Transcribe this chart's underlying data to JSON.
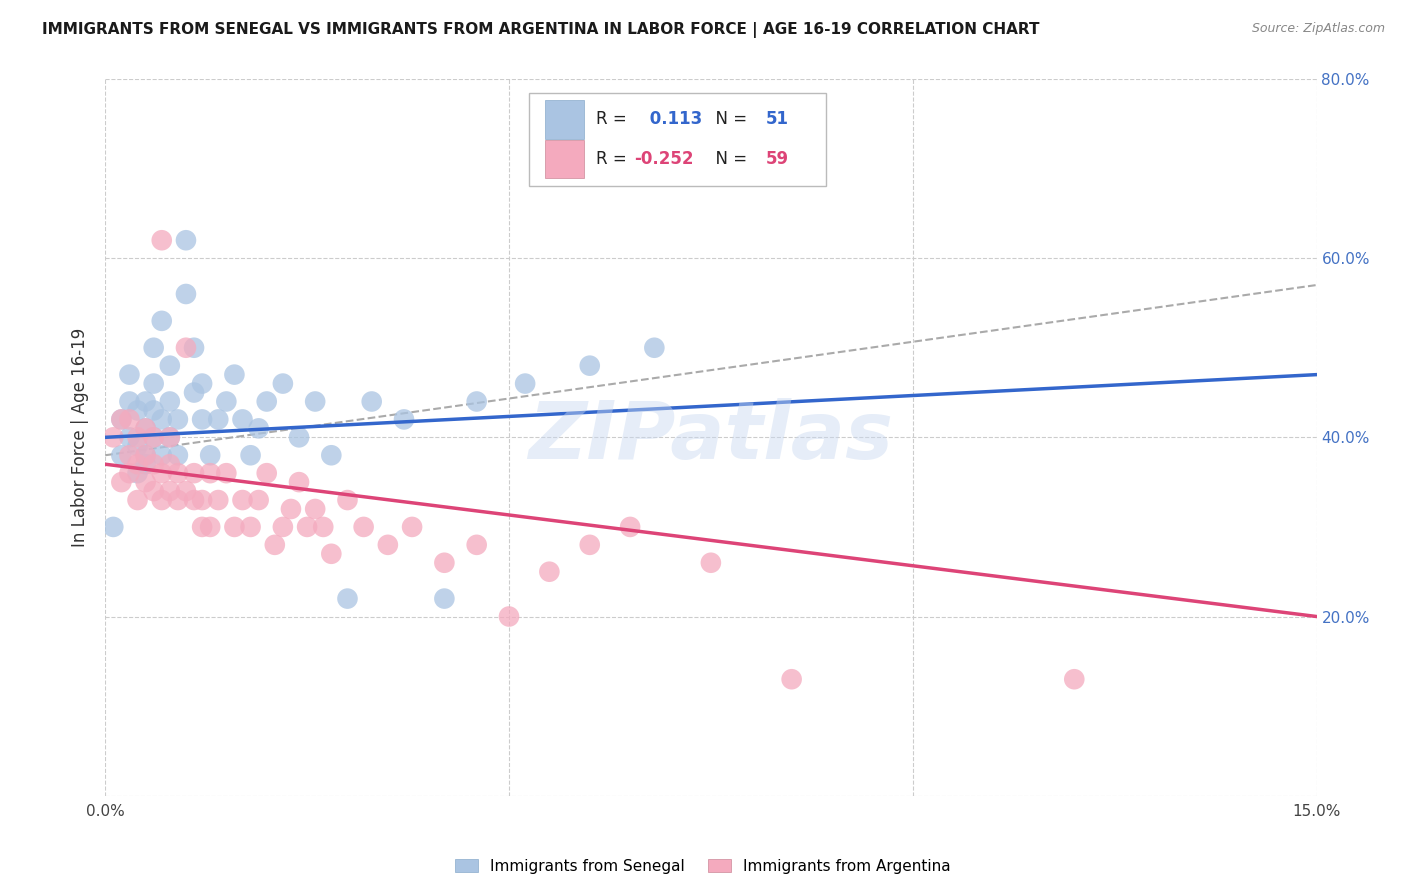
{
  "title": "IMMIGRANTS FROM SENEGAL VS IMMIGRANTS FROM ARGENTINA IN LABOR FORCE | AGE 16-19 CORRELATION CHART",
  "source": "Source: ZipAtlas.com",
  "ylabel": "In Labor Force | Age 16-19",
  "xlim": [
    0.0,
    0.15
  ],
  "ylim": [
    0.0,
    0.8
  ],
  "senegal_R": 0.113,
  "senegal_N": 51,
  "argentina_R": -0.252,
  "argentina_N": 59,
  "senegal_color": "#aac4e2",
  "argentina_color": "#f4aabe",
  "senegal_line_color": "#3366cc",
  "argentina_line_color": "#dd4477",
  "trend_line_color": "#aaaaaa",
  "background_color": "#ffffff",
  "senegal_x": [
    0.001,
    0.002,
    0.002,
    0.003,
    0.003,
    0.003,
    0.004,
    0.004,
    0.004,
    0.005,
    0.005,
    0.005,
    0.005,
    0.006,
    0.006,
    0.006,
    0.006,
    0.007,
    0.007,
    0.007,
    0.008,
    0.008,
    0.008,
    0.009,
    0.009,
    0.01,
    0.01,
    0.011,
    0.011,
    0.012,
    0.012,
    0.013,
    0.014,
    0.015,
    0.016,
    0.017,
    0.018,
    0.019,
    0.02,
    0.022,
    0.024,
    0.026,
    0.028,
    0.03,
    0.033,
    0.037,
    0.042,
    0.046,
    0.052,
    0.06,
    0.068
  ],
  "senegal_y": [
    0.3,
    0.38,
    0.42,
    0.4,
    0.44,
    0.47,
    0.36,
    0.39,
    0.43,
    0.38,
    0.41,
    0.44,
    0.37,
    0.4,
    0.43,
    0.46,
    0.5,
    0.38,
    0.42,
    0.53,
    0.4,
    0.44,
    0.48,
    0.38,
    0.42,
    0.56,
    0.62,
    0.45,
    0.5,
    0.42,
    0.46,
    0.38,
    0.42,
    0.44,
    0.47,
    0.42,
    0.38,
    0.41,
    0.44,
    0.46,
    0.4,
    0.44,
    0.38,
    0.22,
    0.44,
    0.42,
    0.22,
    0.44,
    0.46,
    0.48,
    0.5
  ],
  "argentina_x": [
    0.001,
    0.002,
    0.002,
    0.003,
    0.003,
    0.003,
    0.004,
    0.004,
    0.004,
    0.005,
    0.005,
    0.005,
    0.006,
    0.006,
    0.006,
    0.007,
    0.007,
    0.007,
    0.008,
    0.008,
    0.008,
    0.009,
    0.009,
    0.01,
    0.01,
    0.011,
    0.011,
    0.012,
    0.012,
    0.013,
    0.013,
    0.014,
    0.015,
    0.016,
    0.017,
    0.018,
    0.019,
    0.02,
    0.021,
    0.022,
    0.023,
    0.024,
    0.025,
    0.026,
    0.027,
    0.028,
    0.03,
    0.032,
    0.035,
    0.038,
    0.042,
    0.046,
    0.05,
    0.055,
    0.06,
    0.065,
    0.075,
    0.085,
    0.12
  ],
  "argentina_y": [
    0.4,
    0.35,
    0.42,
    0.36,
    0.38,
    0.42,
    0.33,
    0.37,
    0.4,
    0.35,
    0.38,
    0.41,
    0.34,
    0.37,
    0.4,
    0.33,
    0.36,
    0.62,
    0.34,
    0.37,
    0.4,
    0.33,
    0.36,
    0.5,
    0.34,
    0.33,
    0.36,
    0.3,
    0.33,
    0.36,
    0.3,
    0.33,
    0.36,
    0.3,
    0.33,
    0.3,
    0.33,
    0.36,
    0.28,
    0.3,
    0.32,
    0.35,
    0.3,
    0.32,
    0.3,
    0.27,
    0.33,
    0.3,
    0.28,
    0.3,
    0.26,
    0.28,
    0.2,
    0.25,
    0.28,
    0.3,
    0.26,
    0.13,
    0.13
  ]
}
